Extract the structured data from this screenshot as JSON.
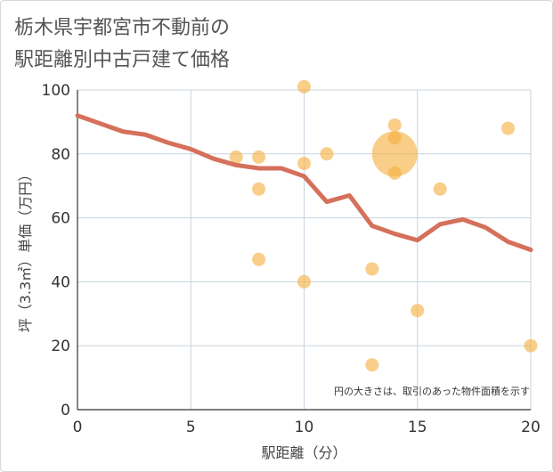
{
  "chart_data": {
    "type": "scatter",
    "title_lines": [
      "栃木県宇都宮市不動前の",
      "駅距離別中古戸建て価格"
    ],
    "xlabel": "駅距離（分）",
    "ylabel": "坪（3.3㎡）単価（万円）",
    "xlim": [
      0,
      20
    ],
    "ylim": [
      0,
      100
    ],
    "xticks": [
      0,
      5,
      10,
      15,
      20
    ],
    "yticks": [
      0,
      20,
      40,
      60,
      80,
      100
    ],
    "grid": true,
    "note": "円の大きさは、取引のあった物件面積を示す",
    "colors": {
      "bubble": "#f5b041",
      "line": "#d5705b"
    },
    "bubbles": [
      {
        "x": 7,
        "y": 79,
        "size": 1
      },
      {
        "x": 8,
        "y": 79,
        "size": 1
      },
      {
        "x": 8,
        "y": 69,
        "size": 1
      },
      {
        "x": 8,
        "y": 47,
        "size": 1
      },
      {
        "x": 10,
        "y": 101,
        "size": 1
      },
      {
        "x": 10,
        "y": 77,
        "size": 1
      },
      {
        "x": 10,
        "y": 40,
        "size": 1
      },
      {
        "x": 11,
        "y": 80,
        "size": 1
      },
      {
        "x": 13,
        "y": 44,
        "size": 1
      },
      {
        "x": 13,
        "y": 14,
        "size": 1
      },
      {
        "x": 14,
        "y": 80,
        "size": 3.4
      },
      {
        "x": 14,
        "y": 89,
        "size": 1
      },
      {
        "x": 14,
        "y": 85,
        "size": 1
      },
      {
        "x": 14,
        "y": 74,
        "size": 1
      },
      {
        "x": 15,
        "y": 31,
        "size": 1
      },
      {
        "x": 16,
        "y": 69,
        "size": 1
      },
      {
        "x": 19,
        "y": 88,
        "size": 1
      },
      {
        "x": 20,
        "y": 20,
        "size": 1
      }
    ],
    "trend_line": {
      "x": [
        0,
        1,
        2,
        3,
        4,
        5,
        6,
        7,
        8,
        9,
        10,
        11,
        12,
        13,
        14,
        15,
        16,
        17,
        18,
        19,
        20
      ],
      "y": [
        92,
        89.5,
        87,
        86,
        83.5,
        81.5,
        78.5,
        76.5,
        75.5,
        75.5,
        73,
        65,
        67,
        57.5,
        55,
        53,
        58,
        59.5,
        57,
        52.5,
        50
      ]
    }
  }
}
